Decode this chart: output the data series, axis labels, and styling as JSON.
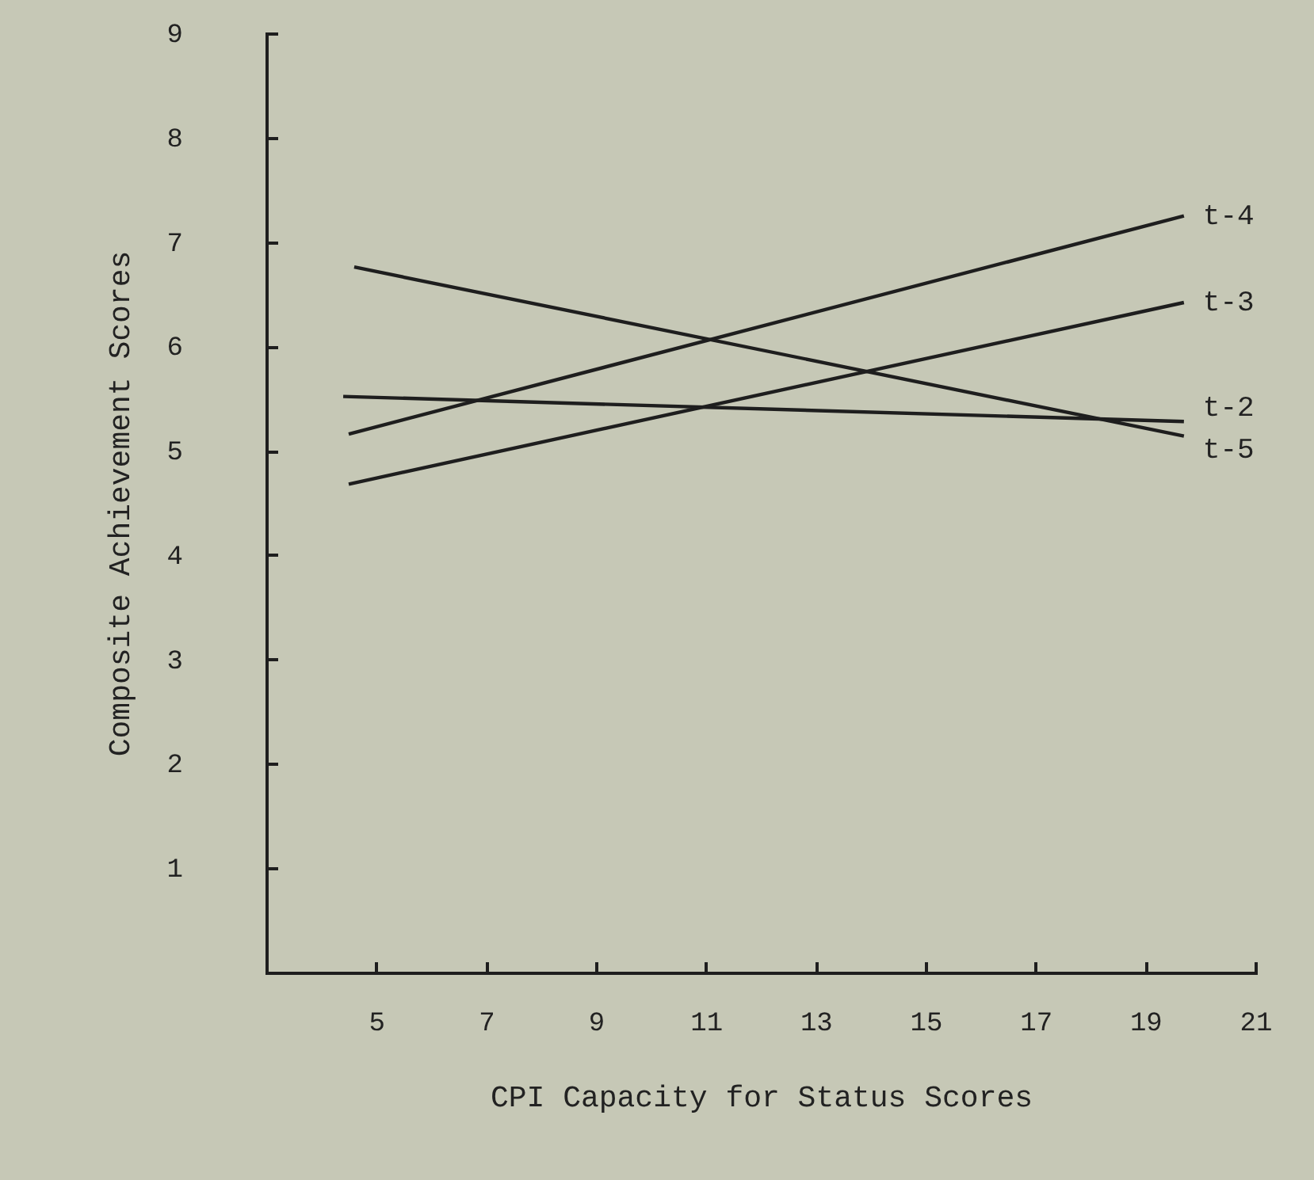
{
  "chart_data": {
    "type": "line",
    "xlabel": "CPI Capacity for Status Scores",
    "ylabel": "Composite Achievement Scores",
    "xlim": [
      3,
      21
    ],
    "xticks": [
      5,
      7,
      9,
      11,
      13,
      15,
      17,
      19,
      21
    ],
    "ylim": [
      0,
      9
    ],
    "yticks": [
      1,
      2,
      3,
      4,
      5,
      6,
      7,
      8,
      9
    ],
    "grid": false,
    "legend": false,
    "marker": "none",
    "line_style": "solid",
    "series": [
      {
        "name": "t-4",
        "color": "#1e1e1e",
        "x": [
          4.5,
          19.7
        ],
        "values": [
          5.16,
          7.25
        ]
      },
      {
        "name": "t-3",
        "color": "#1e1e1e",
        "x": [
          4.5,
          19.7
        ],
        "values": [
          4.68,
          6.42
        ]
      },
      {
        "name": "t-2",
        "color": "#1e1e1e",
        "x": [
          4.4,
          19.7
        ],
        "values": [
          5.52,
          5.28
        ]
      },
      {
        "name": "t-5",
        "color": "#1e1e1e",
        "x": [
          4.6,
          19.7
        ],
        "values": [
          6.76,
          5.14
        ]
      }
    ]
  }
}
